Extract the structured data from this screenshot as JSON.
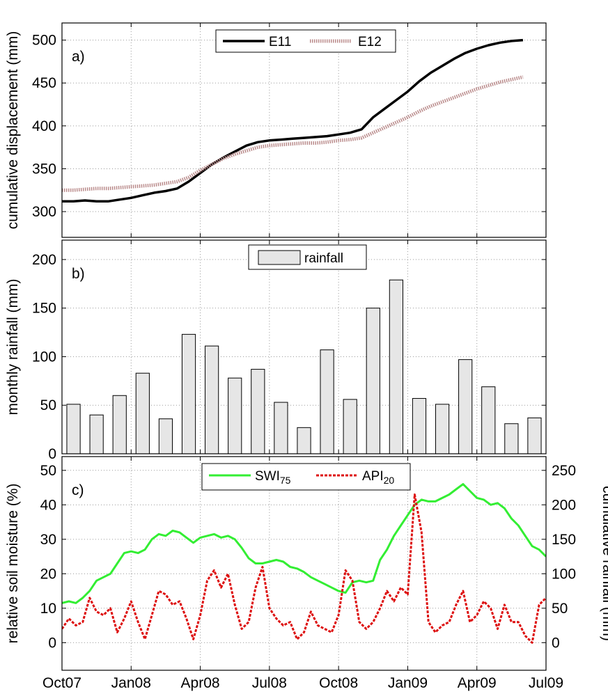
{
  "chart_data": [
    {
      "panel": "a)",
      "type": "line",
      "ylabel": "cumulative displacement (mm)",
      "ylim": [
        270,
        520
      ],
      "yticks": [
        300,
        350,
        400,
        450,
        500
      ],
      "xlim": [
        0,
        21
      ],
      "grid": true,
      "legend_position": "top-center",
      "series": [
        {
          "name": "E11",
          "color": "#000000",
          "style": "solid",
          "x": [
            0,
            0.5,
            1,
            1.5,
            2,
            2.5,
            3,
            3.5,
            4,
            4.5,
            5,
            5.5,
            6,
            6.5,
            7,
            7.5,
            8,
            8.5,
            9,
            9.5,
            10,
            10.5,
            11,
            11.5,
            12,
            12.5,
            13,
            13.5,
            14,
            14.5,
            15,
            15.5,
            16,
            16.5,
            17,
            17.5,
            18,
            18.5,
            19,
            19.5,
            20
          ],
          "y": [
            312,
            312,
            313,
            312,
            312,
            314,
            316,
            319,
            322,
            324,
            327,
            335,
            345,
            355,
            363,
            370,
            377,
            381,
            383,
            384,
            385,
            386,
            387,
            388,
            390,
            392,
            396,
            410,
            420,
            430,
            440,
            452,
            462,
            470,
            478,
            485,
            490,
            494,
            497,
            499,
            500
          ]
        },
        {
          "name": "E12",
          "color": "#b98a8a",
          "style": "dotted",
          "x": [
            0,
            0.5,
            1,
            1.5,
            2,
            2.5,
            3,
            3.5,
            4,
            4.5,
            5,
            5.5,
            6,
            6.5,
            7,
            7.5,
            8,
            8.5,
            9,
            9.5,
            10,
            10.5,
            11,
            11.5,
            12,
            12.5,
            13,
            13.5,
            14,
            14.5,
            15,
            15.5,
            16,
            16.5,
            17,
            17.5,
            18,
            18.5,
            19,
            19.5,
            20
          ],
          "y": [
            325,
            325,
            326,
            327,
            327,
            328,
            329,
            330,
            331,
            333,
            335,
            340,
            348,
            355,
            362,
            367,
            371,
            375,
            377,
            378,
            379,
            380,
            380,
            381,
            383,
            384,
            386,
            392,
            398,
            404,
            410,
            417,
            423,
            428,
            433,
            438,
            443,
            447,
            451,
            454,
            457
          ]
        }
      ]
    },
    {
      "panel": "b)",
      "type": "bar",
      "ylabel": "monthly rainfall (mm)",
      "ylim": [
        0,
        220
      ],
      "yticks": [
        0,
        50,
        100,
        150,
        200
      ],
      "xlim": [
        0,
        21
      ],
      "grid": true,
      "legend_position": "top-center",
      "series": [
        {
          "name": "rainfall",
          "color": "#e6e6e6",
          "x": [
            0.5,
            1.5,
            2.5,
            3.5,
            4.5,
            5.5,
            6.5,
            7.5,
            8.5,
            9.5,
            10.5,
            11.5,
            12.5,
            13.5,
            14.5,
            15.5,
            16.5,
            17.5,
            18.5,
            19.5,
            20.5
          ],
          "values": [
            51,
            40,
            60,
            83,
            36,
            123,
            111,
            78,
            87,
            53,
            27,
            107,
            56,
            150,
            179,
            57,
            51,
            97,
            69,
            31,
            37
          ]
        }
      ]
    },
    {
      "panel": "c)",
      "type": "line",
      "ylabel": "relative soil moisture (%)",
      "ylim": [
        -8,
        54
      ],
      "yticks": [
        0,
        10,
        20,
        30,
        40,
        50
      ],
      "y2label": "cumulative rainfall (mm)",
      "y2ticks": [
        0,
        50,
        100,
        150,
        200,
        250
      ],
      "y2_to_y1_factor": 0.2,
      "xlim": [
        0,
        21
      ],
      "grid": true,
      "legend_position": "top-center",
      "series": [
        {
          "name": "SWI",
          "name_sub": "75",
          "color": "#33ee33",
          "style": "solid",
          "axis": "left",
          "x": [
            0,
            0.3,
            0.6,
            0.9,
            1.2,
            1.5,
            1.8,
            2.1,
            2.4,
            2.7,
            3.0,
            3.3,
            3.6,
            3.9,
            4.2,
            4.5,
            4.8,
            5.1,
            5.4,
            5.7,
            6.0,
            6.3,
            6.6,
            6.9,
            7.2,
            7.5,
            7.8,
            8.1,
            8.4,
            8.7,
            9.0,
            9.3,
            9.6,
            9.9,
            10.2,
            10.5,
            10.8,
            11.1,
            11.4,
            11.7,
            12.0,
            12.3,
            12.6,
            12.9,
            13.2,
            13.5,
            13.8,
            14.1,
            14.4,
            14.7,
            15.0,
            15.3,
            15.6,
            15.9,
            16.2,
            16.5,
            16.8,
            17.1,
            17.4,
            17.7,
            18.0,
            18.3,
            18.6,
            18.9,
            19.2,
            19.5,
            19.8,
            20.1,
            20.4,
            20.7,
            21.0
          ],
          "y": [
            11.5,
            12,
            11.5,
            13,
            15,
            18,
            19,
            20,
            23,
            26,
            26.5,
            26,
            27,
            30,
            31.5,
            31,
            32.5,
            32,
            30.5,
            29,
            30.5,
            31,
            31.5,
            30.5,
            31,
            30,
            27.5,
            24.5,
            23,
            23,
            23.5,
            24,
            23.5,
            22,
            21.5,
            20.5,
            19,
            18,
            17,
            16,
            15,
            14.5,
            17.5,
            18,
            17.5,
            18,
            24,
            27,
            31,
            34,
            37,
            40,
            41.5,
            41,
            41,
            42,
            43,
            44.5,
            46,
            44,
            42,
            41.5,
            40,
            40.5,
            39,
            36,
            34,
            31,
            28,
            27,
            25
          ]
        },
        {
          "name": "API",
          "name_sub": "20",
          "color": "#dd1111",
          "style": "dashed",
          "axis": "right",
          "x": [
            0,
            0.3,
            0.6,
            0.9,
            1.2,
            1.5,
            1.8,
            2.1,
            2.4,
            2.7,
            3.0,
            3.3,
            3.6,
            3.9,
            4.2,
            4.5,
            4.8,
            5.1,
            5.4,
            5.7,
            6.0,
            6.3,
            6.6,
            6.9,
            7.2,
            7.5,
            7.8,
            8.1,
            8.4,
            8.7,
            9.0,
            9.3,
            9.6,
            9.9,
            10.2,
            10.5,
            10.8,
            11.1,
            11.4,
            11.7,
            12.0,
            12.3,
            12.6,
            12.9,
            13.2,
            13.5,
            13.8,
            14.1,
            14.4,
            14.7,
            15.0,
            15.3,
            15.6,
            15.9,
            16.2,
            16.5,
            16.8,
            17.1,
            17.4,
            17.7,
            18.0,
            18.3,
            18.6,
            18.9,
            19.2,
            19.5,
            19.8,
            20.1,
            20.4,
            20.7,
            21.0
          ],
          "y": [
            20,
            35,
            25,
            30,
            65,
            45,
            40,
            50,
            15,
            35,
            60,
            30,
            5,
            40,
            75,
            70,
            55,
            60,
            35,
            5,
            40,
            90,
            105,
            80,
            100,
            55,
            20,
            30,
            80,
            110,
            50,
            35,
            25,
            30,
            5,
            15,
            45,
            25,
            20,
            15,
            40,
            105,
            90,
            30,
            20,
            30,
            50,
            75,
            60,
            80,
            70,
            215,
            160,
            30,
            15,
            25,
            30,
            55,
            75,
            30,
            40,
            60,
            50,
            20,
            55,
            30,
            30,
            10,
            0,
            55,
            65
          ]
        }
      ]
    }
  ],
  "x_axis": {
    "tick_positions": [
      0,
      3,
      6,
      9,
      12,
      15,
      18,
      21
    ],
    "tick_labels": [
      "Oct07",
      "Jan08",
      "Apr08",
      "Jul08",
      "Oct08",
      "Jan09",
      "Apr09",
      "Jul09"
    ]
  }
}
